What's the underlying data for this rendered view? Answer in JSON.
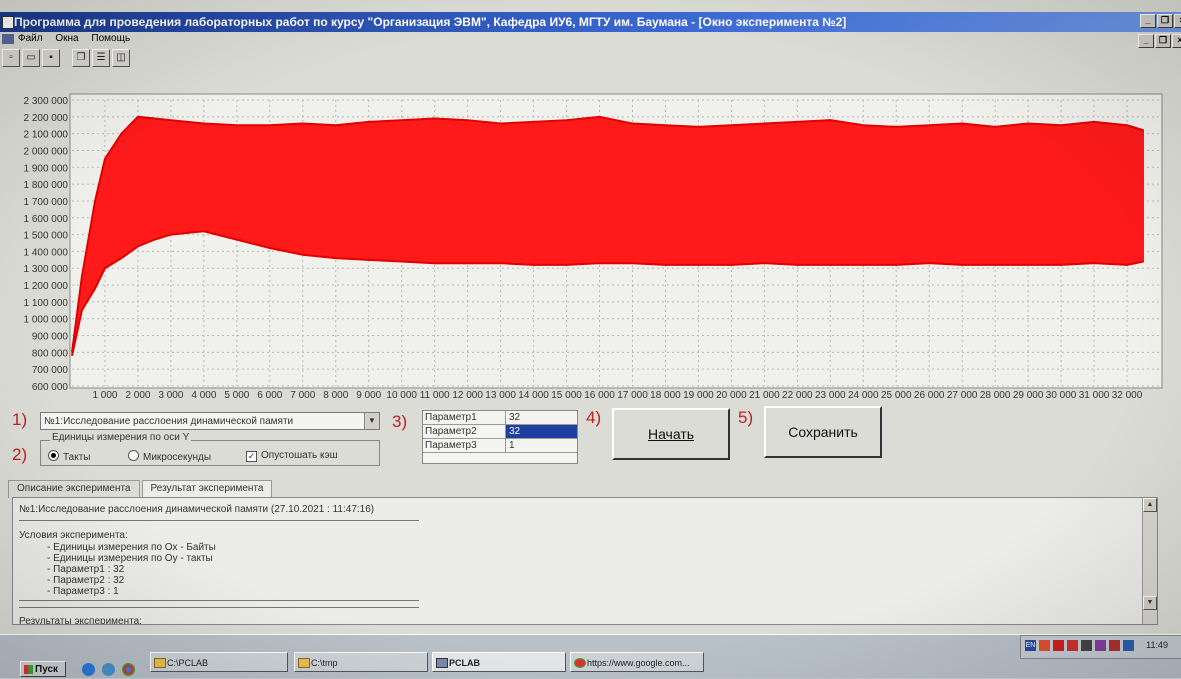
{
  "window": {
    "title": "Программа для проведения лабораторных работ по курсу \"Организация ЭВМ\", Кафедра ИУ6, МГТУ им. Баумана - [Окно эксперимента №2]",
    "controls": [
      "_",
      "❐",
      "×"
    ]
  },
  "menu": {
    "items": [
      "Файл",
      "Окна",
      "Помощь"
    ]
  },
  "toolbar": {
    "icons": [
      "new-file-icon",
      "open-folder-icon",
      "save-icon",
      "cascade-icon",
      "tile-horizontal-icon",
      "tile-vertical-icon"
    ]
  },
  "chart_data": {
    "type": "area",
    "title": "",
    "xlabel": "",
    "ylabel": "",
    "xlim": [
      0,
      33000
    ],
    "ylim": [
      600000,
      2300000
    ],
    "grid": true,
    "x_ticks": [
      "1 000",
      "2 000",
      "3 000",
      "4 000",
      "5 000",
      "6 000",
      "7 000",
      "8 000",
      "9 000",
      "10 000",
      "11 000",
      "12 000",
      "13 000",
      "14 000",
      "15 000",
      "16 000",
      "17 000",
      "18 000",
      "19 000",
      "20 000",
      "21 000",
      "22 000",
      "23 000",
      "24 000",
      "25 000",
      "26 000",
      "27 000",
      "28 000",
      "29 000",
      "30 000",
      "31 000",
      "32 000"
    ],
    "x_tick_values": [
      1000,
      2000,
      3000,
      4000,
      5000,
      6000,
      7000,
      8000,
      9000,
      10000,
      11000,
      12000,
      13000,
      14000,
      15000,
      16000,
      17000,
      18000,
      19000,
      20000,
      21000,
      22000,
      23000,
      24000,
      25000,
      26000,
      27000,
      28000,
      29000,
      30000,
      31000,
      32000
    ],
    "y_ticks": [
      "2 300 000",
      "2 200 000",
      "2 100 000",
      "2 000 000",
      "1 900 000",
      "1 800 000",
      "1 700 000",
      "1 600 000",
      "1 500 000",
      "1 400 000",
      "1 300 000",
      "1 200 000",
      "1 100 000",
      "1 000 000",
      "900 000",
      "800 000",
      "700 000",
      "600 000"
    ],
    "y_tick_values": [
      2300000,
      2200000,
      2100000,
      2000000,
      1900000,
      1800000,
      1700000,
      1600000,
      1500000,
      1400000,
      1300000,
      1200000,
      1100000,
      1000000,
      900000,
      800000,
      700000,
      600000
    ],
    "series": [
      {
        "color": "#ff1a1a",
        "x": [
          0,
          300,
          700,
          1000,
          1500,
          2000,
          2500,
          3000,
          3500,
          4000,
          5000,
          6000,
          7000,
          8000,
          9000,
          10000,
          11000,
          12000,
          13000,
          14000,
          15000,
          16000,
          17000,
          18000,
          19000,
          20000,
          21000,
          22000,
          23000,
          24000,
          25000,
          26000,
          27000,
          28000,
          29000,
          30000,
          31000,
          32000,
          32500
        ],
        "upper": [
          800000,
          1250000,
          1700000,
          1950000,
          2100000,
          2200000,
          2190000,
          2180000,
          2170000,
          2160000,
          2150000,
          2150000,
          2160000,
          2150000,
          2170000,
          2180000,
          2190000,
          2180000,
          2160000,
          2170000,
          2180000,
          2200000,
          2160000,
          2150000,
          2140000,
          2150000,
          2160000,
          2170000,
          2180000,
          2150000,
          2140000,
          2150000,
          2160000,
          2140000,
          2160000,
          2150000,
          2170000,
          2150000,
          2120000
        ],
        "lower": [
          780000,
          1050000,
          1180000,
          1300000,
          1360000,
          1430000,
          1470000,
          1500000,
          1510000,
          1520000,
          1470000,
          1420000,
          1380000,
          1360000,
          1350000,
          1340000,
          1330000,
          1330000,
          1330000,
          1320000,
          1320000,
          1330000,
          1330000,
          1320000,
          1320000,
          1320000,
          1330000,
          1320000,
          1320000,
          1320000,
          1320000,
          1330000,
          1320000,
          1320000,
          1320000,
          1320000,
          1330000,
          1320000,
          1340000
        ]
      }
    ]
  },
  "experiment": {
    "step1_label": "1)",
    "step2_label": "2)",
    "step3_label": "3)",
    "step4_label": "4)",
    "step5_label": "5)",
    "combo_value": "№1:Исследование расслоения динамической памяти",
    "units_group_title": "Единицы измерения по оси Y",
    "radio_ticks": "Такты",
    "radio_micro": "Микросекунды",
    "check_flush": "Опустошать кэш",
    "params": [
      {
        "name": "Параметр1",
        "value": "32"
      },
      {
        "name": "Параметр2",
        "value": "32"
      },
      {
        "name": "Параметр3",
        "value": "1"
      }
    ],
    "start_button": "Начать",
    "save_button": "Сохранить"
  },
  "tabs": [
    "Описание эксперимента",
    "Результат эксперимента"
  ],
  "log": {
    "header": "№1:Исследование расслоения динамической памяти (27.10.2021 : 11:47:16)",
    "conditions_title": "Условия эксперимента:",
    "lines": [
      "- Единицы измерения по Ох - Байты",
      "- Единицы измерения по Оу - такты",
      "- Параметр1    :  32",
      "- Параметр2    :  32",
      "- Параметр3    :  1"
    ],
    "results_title": "Результаты эксперимента:"
  },
  "taskbar": {
    "start": "Пуск",
    "tasks": [
      "C:\\PCLAB",
      "C:\\tmp",
      "PCLAB",
      "https://www.google.com..."
    ],
    "tray_lang": "EN",
    "clock": "11:49"
  }
}
